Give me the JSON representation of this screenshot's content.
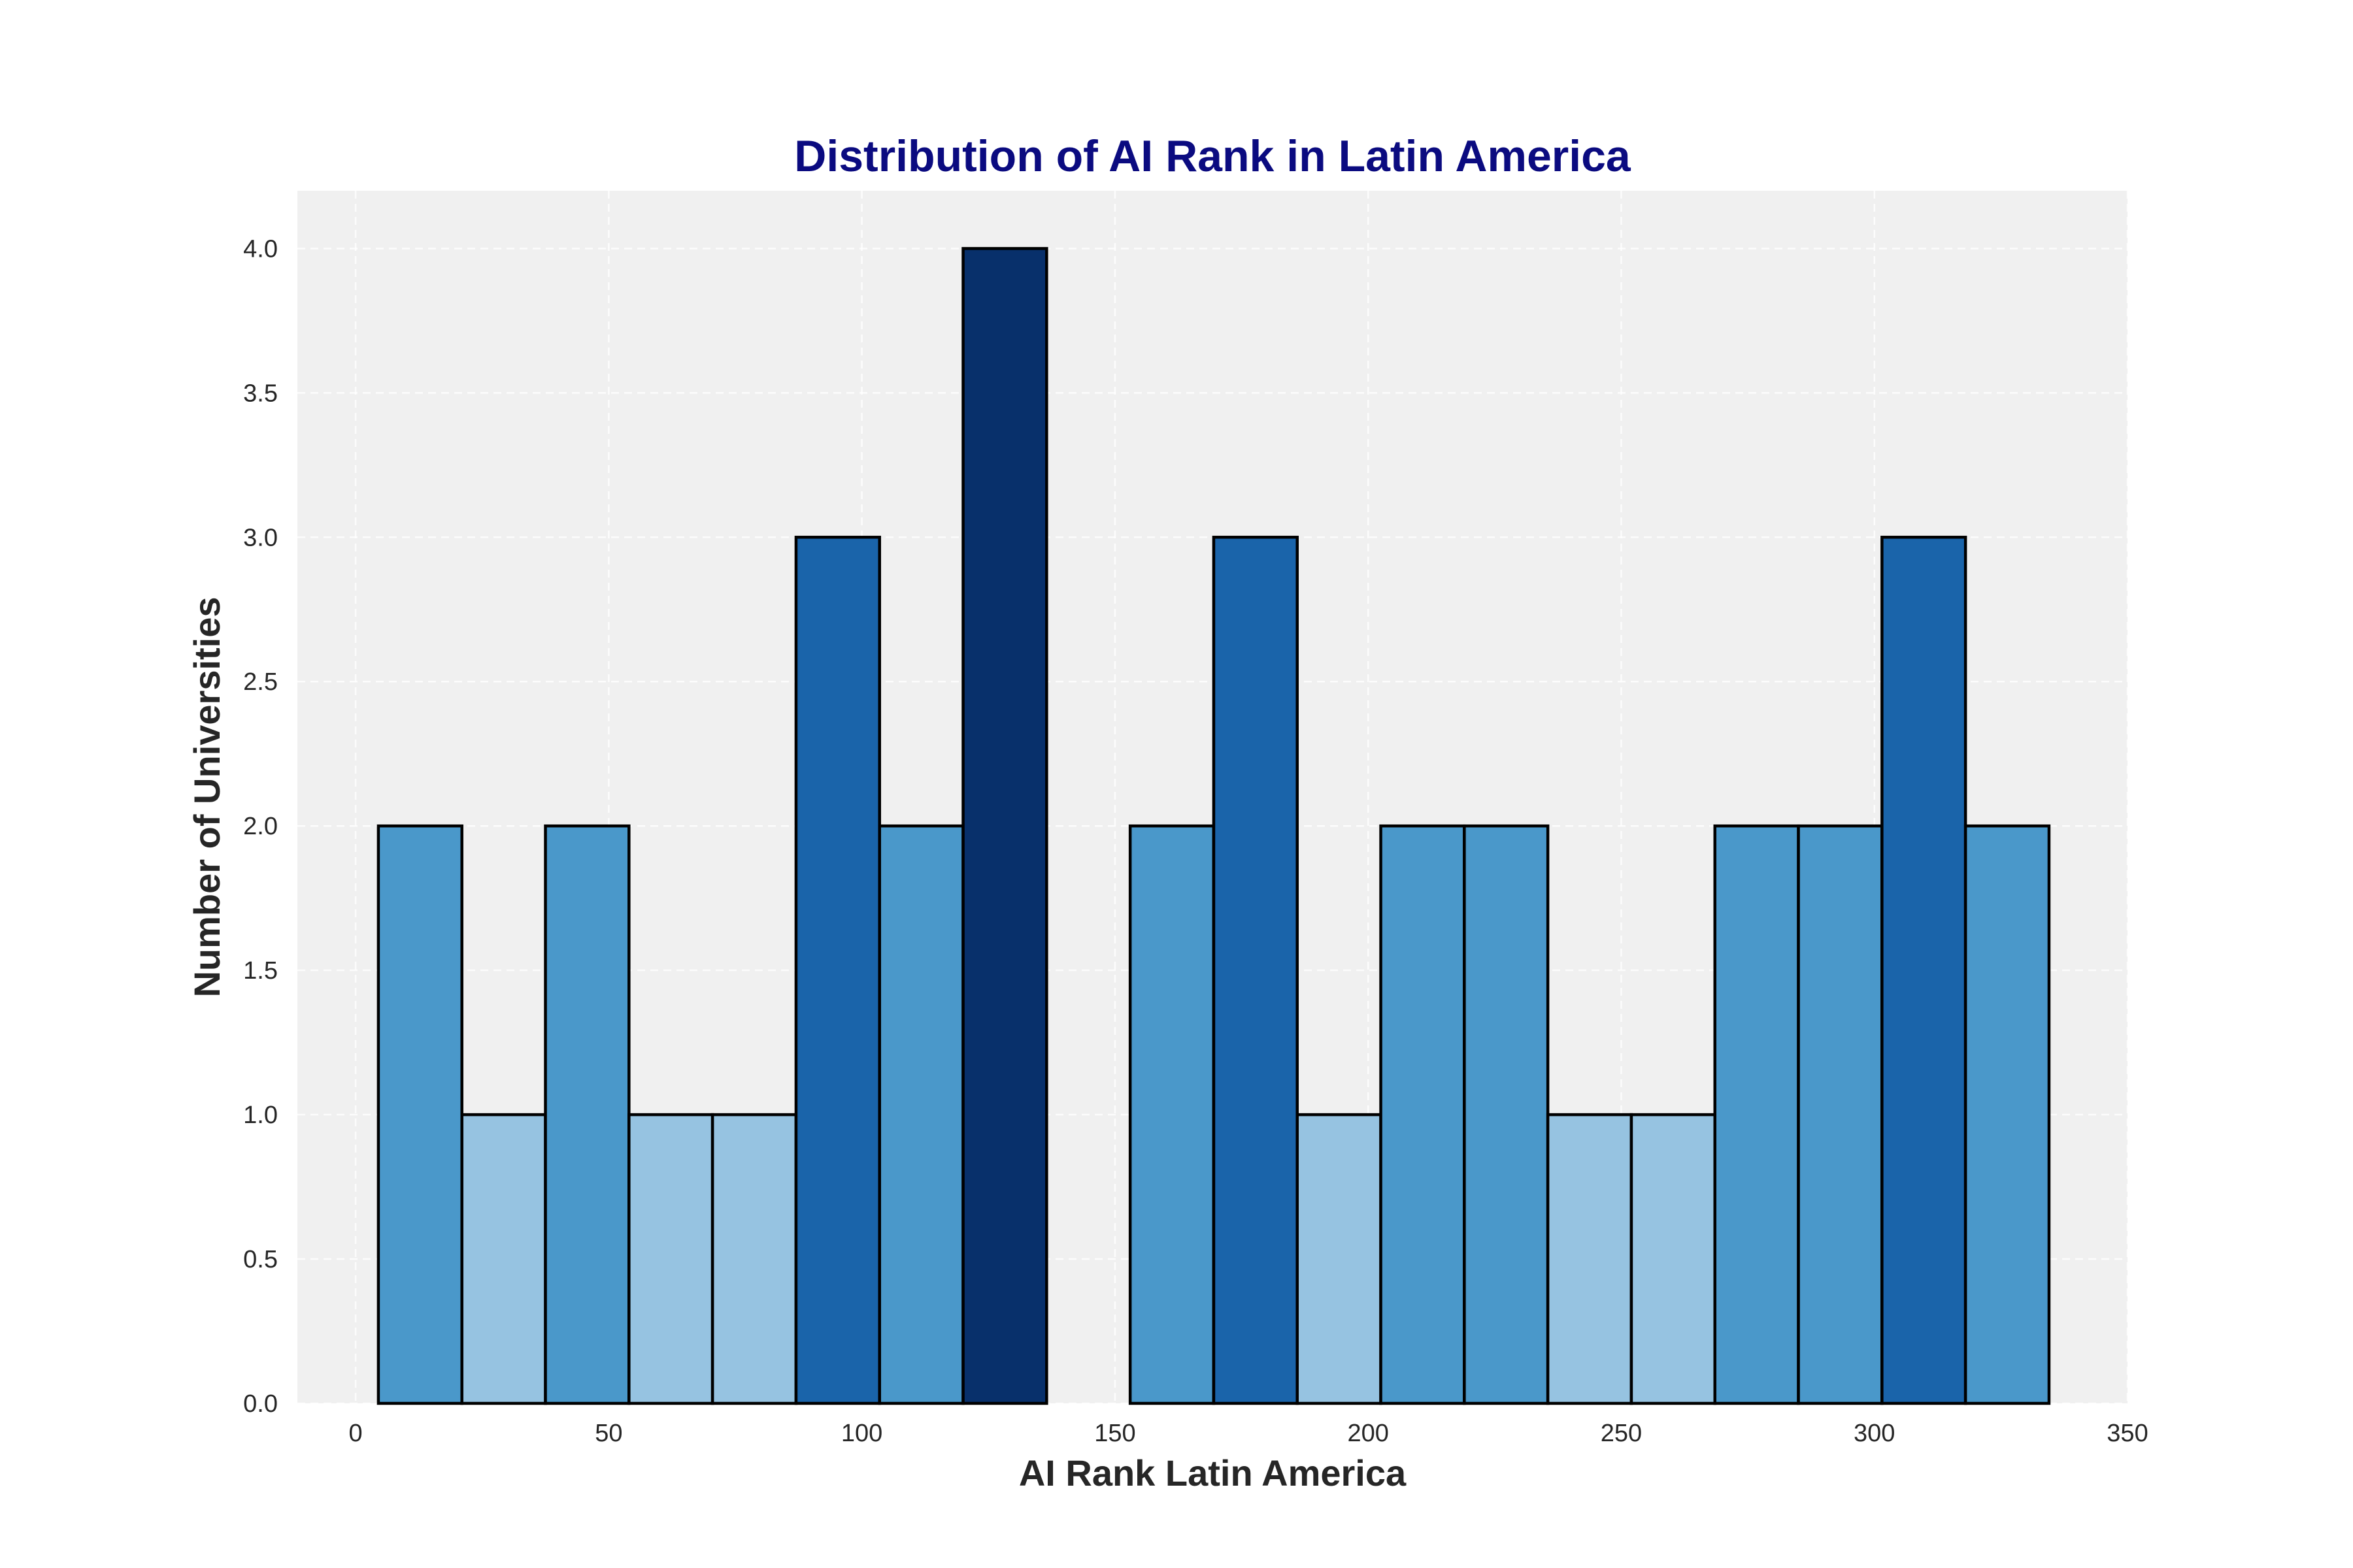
{
  "chart_data": {
    "type": "bar",
    "subtype": "histogram",
    "title": "Distribution of AI Rank in Latin America",
    "xlabel": "AI Rank Latin America",
    "ylabel": "Number of Universities",
    "xlim": [
      -11.5,
      350
    ],
    "ylim": [
      0,
      4.2
    ],
    "xticks": [
      0,
      50,
      100,
      150,
      200,
      250,
      300,
      350
    ],
    "yticks": [
      "0.0",
      "0.5",
      "1.0",
      "1.5",
      "2.0",
      "2.5",
      "3.0",
      "3.5",
      "4.0"
    ],
    "bins": [
      {
        "start": 4.5,
        "end": 21.0,
        "count": 2
      },
      {
        "start": 21.0,
        "end": 37.5,
        "count": 1
      },
      {
        "start": 37.5,
        "end": 54.0,
        "count": 2
      },
      {
        "start": 54.0,
        "end": 70.5,
        "count": 1
      },
      {
        "start": 70.5,
        "end": 87.0,
        "count": 1
      },
      {
        "start": 87.0,
        "end": 103.5,
        "count": 3
      },
      {
        "start": 103.5,
        "end": 120.0,
        "count": 2
      },
      {
        "start": 120.0,
        "end": 136.5,
        "count": 4
      },
      {
        "start": 136.5,
        "end": 153.0,
        "count": 0
      },
      {
        "start": 153.0,
        "end": 169.5,
        "count": 2
      },
      {
        "start": 169.5,
        "end": 186.0,
        "count": 3
      },
      {
        "start": 186.0,
        "end": 202.5,
        "count": 1
      },
      {
        "start": 202.5,
        "end": 219.0,
        "count": 2
      },
      {
        "start": 219.0,
        "end": 235.5,
        "count": 2
      },
      {
        "start": 235.5,
        "end": 252.0,
        "count": 1
      },
      {
        "start": 252.0,
        "end": 268.5,
        "count": 1
      },
      {
        "start": 268.5,
        "end": 285.0,
        "count": 2
      },
      {
        "start": 285.0,
        "end": 301.5,
        "count": 2
      },
      {
        "start": 301.5,
        "end": 318.0,
        "count": 3
      },
      {
        "start": 318.0,
        "end": 334.5,
        "count": 2
      }
    ],
    "color_by_count": {
      "0": "#f7fbff",
      "1": "#96c3e1",
      "2": "#4a98ca",
      "3": "#1a64aa",
      "4": "#08306b"
    },
    "background_color": "#f0f0f0",
    "grid": true
  }
}
